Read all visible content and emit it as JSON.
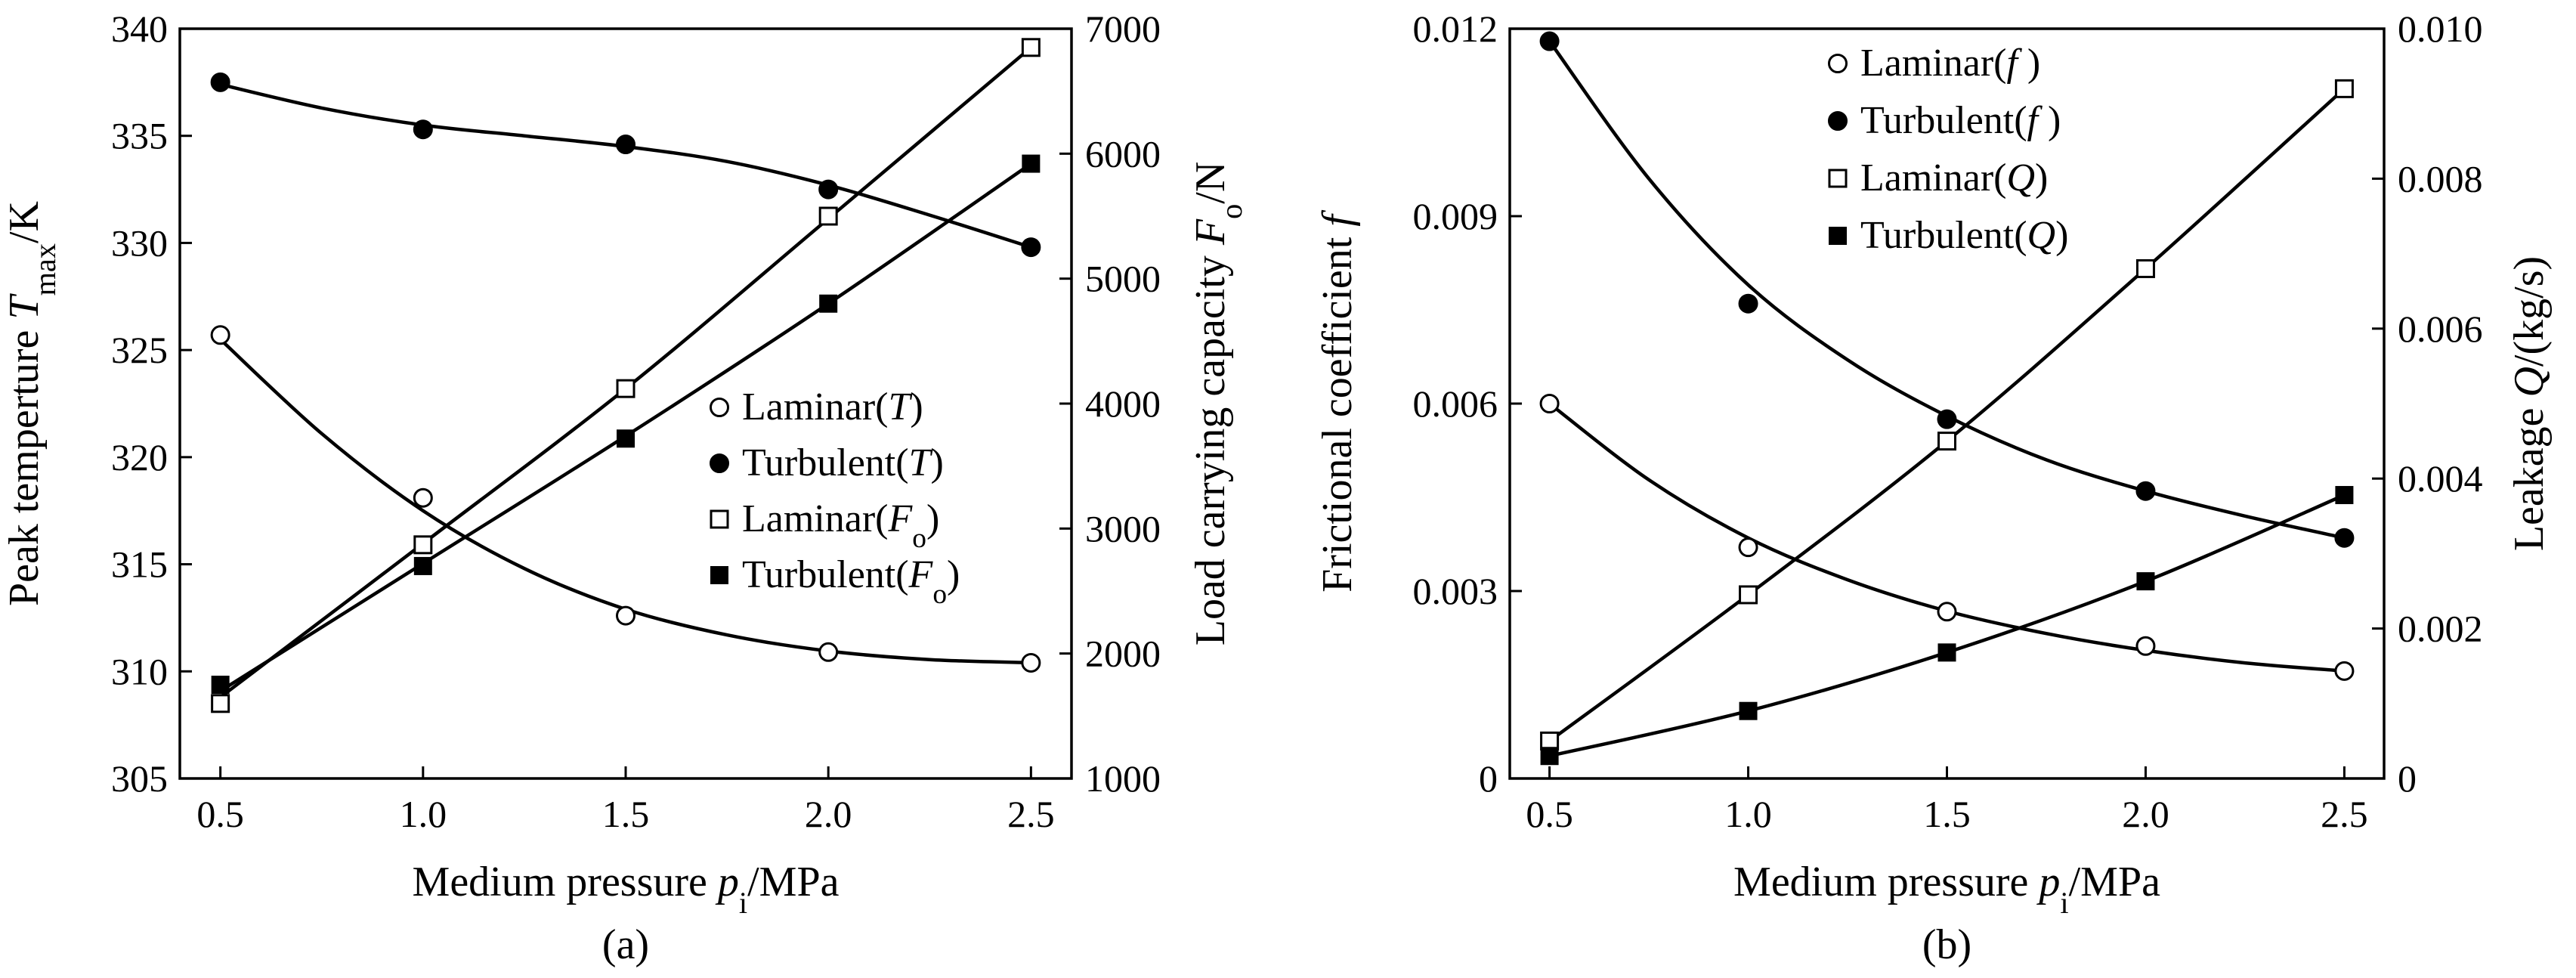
{
  "colors": {
    "ink": "#000000",
    "paper": "#ffffff"
  },
  "chart_data": [
    {
      "type": "line",
      "id": "a",
      "caption": "(a)",
      "xlabel_parts": [
        "Medium pressure ",
        "p",
        "i",
        "/MPa"
      ],
      "ylabel_left_parts": [
        "Peak temperture ",
        "T",
        "max",
        "/K"
      ],
      "ylabel_right_parts": [
        "Load carrying capacity ",
        "F",
        "o",
        "/N"
      ],
      "x_ticks": [
        "0.5",
        "1.0",
        "1.5",
        "2.0",
        "2.5"
      ],
      "x_tick_values": [
        0.5,
        1.0,
        1.5,
        2.0,
        2.5
      ],
      "xlim": [
        0.4,
        2.6
      ],
      "ylim_left": [
        305,
        340
      ],
      "y_ticks_left": [
        "305",
        "310",
        "315",
        "320",
        "325",
        "330",
        "335",
        "340"
      ],
      "y_tick_values_left": [
        305,
        310,
        315,
        320,
        325,
        330,
        335,
        340
      ],
      "ylim_right": [
        1000,
        7000
      ],
      "y_ticks_right": [
        "1000",
        "2000",
        "3000",
        "4000",
        "5000",
        "6000",
        "7000"
      ],
      "y_tick_values_right": [
        1000,
        2000,
        3000,
        4000,
        5000,
        6000,
        7000
      ],
      "legend_position": "center-right",
      "series": [
        {
          "key": "laminar-t",
          "legend_parts": [
            "Laminar(",
            "T",
            "",
            ")"
          ],
          "marker": "circle-open",
          "axis": "left",
          "x": [
            0.5,
            1.0,
            1.5,
            2.0,
            2.5
          ],
          "y": [
            325.7,
            318.1,
            312.6,
            310.9,
            310.4
          ],
          "fit": [
            [
              0.5,
              325.5
            ],
            [
              0.75,
              321.1
            ],
            [
              1.0,
              317.5
            ],
            [
              1.25,
              314.8
            ],
            [
              1.5,
              312.9
            ],
            [
              1.75,
              311.7
            ],
            [
              2.0,
              310.95
            ],
            [
              2.25,
              310.55
            ],
            [
              2.5,
              310.4
            ]
          ]
        },
        {
          "key": "turbulent-t",
          "legend_parts": [
            "Turbulent(",
            "T",
            "",
            ")"
          ],
          "marker": "circle-filled",
          "axis": "left",
          "x": [
            0.5,
            1.0,
            1.5,
            2.0,
            2.5
          ],
          "y": [
            337.5,
            335.3,
            334.6,
            332.5,
            329.8
          ],
          "fit": [
            [
              0.5,
              337.4
            ],
            [
              0.75,
              336.3
            ],
            [
              1.0,
              335.5
            ],
            [
              1.25,
              335.0
            ],
            [
              1.5,
              334.5
            ],
            [
              1.75,
              333.8
            ],
            [
              2.0,
              332.7
            ],
            [
              2.25,
              331.3
            ],
            [
              2.5,
              329.8
            ]
          ]
        },
        {
          "key": "laminar-f",
          "legend_parts": [
            "Laminar(",
            "F",
            "o",
            ")"
          ],
          "marker": "square-open",
          "axis": "right",
          "x": [
            0.5,
            1.0,
            1.5,
            2.0,
            2.5
          ],
          "y": [
            1600,
            2870,
            4120,
            5500,
            6850
          ],
          "fit": [
            [
              0.5,
              1650
            ],
            [
              1.0,
              2880
            ],
            [
              1.5,
              4120
            ],
            [
              2.0,
              5480
            ],
            [
              2.5,
              6850
            ]
          ]
        },
        {
          "key": "turbulent-f",
          "legend_parts": [
            "Turbulent(",
            "F",
            "o",
            ")"
          ],
          "marker": "square-filled",
          "axis": "right",
          "x": [
            0.5,
            1.0,
            1.5,
            2.0,
            2.5
          ],
          "y": [
            1750,
            2700,
            3720,
            4800,
            5920
          ],
          "fit": [
            [
              0.5,
              1700
            ],
            [
              1.0,
              2720
            ],
            [
              1.5,
              3740
            ],
            [
              2.0,
              4800
            ],
            [
              2.5,
              5920
            ]
          ]
        }
      ]
    },
    {
      "type": "line",
      "id": "b",
      "caption": "(b)",
      "xlabel_parts": [
        "Medium pressure ",
        "p",
        "i",
        "/MPa"
      ],
      "ylabel_left_parts": [
        "Frictional coefficient ",
        "f",
        "",
        ""
      ],
      "ylabel_right_parts": [
        "Leakage ",
        "Q",
        "",
        "/(kg/s)"
      ],
      "x_ticks": [
        "0.5",
        "1.0",
        "1.5",
        "2.0",
        "2.5"
      ],
      "x_tick_values": [
        0.5,
        1.0,
        1.5,
        2.0,
        2.5
      ],
      "xlim": [
        0.4,
        2.6
      ],
      "ylim_left": [
        0,
        0.012
      ],
      "y_ticks_left": [
        "0",
        "0.003",
        "0.006",
        "0.009",
        "0.012"
      ],
      "y_tick_values_left": [
        0,
        0.003,
        0.006,
        0.009,
        0.012
      ],
      "ylim_right": [
        0,
        0.01
      ],
      "y_ticks_right": [
        "0",
        "0.002",
        "0.004",
        "0.006",
        "0.008",
        "0.010"
      ],
      "y_tick_values_right": [
        0,
        0.002,
        0.004,
        0.006,
        0.008,
        0.01
      ],
      "legend_position": "top-center",
      "series": [
        {
          "key": "laminar-f",
          "legend_parts": [
            "Laminar(",
            "f",
            "",
            " )"
          ],
          "marker": "circle-open",
          "axis": "left",
          "x": [
            0.5,
            1.0,
            1.5,
            2.0,
            2.5
          ],
          "y": [
            0.006,
            0.0037,
            0.00267,
            0.00212,
            0.00172
          ],
          "fit": [
            [
              0.5,
              0.006
            ],
            [
              0.75,
              0.00478
            ],
            [
              1.0,
              0.00385
            ],
            [
              1.25,
              0.00318
            ],
            [
              1.5,
              0.00268
            ],
            [
              1.75,
              0.00232
            ],
            [
              2.0,
              0.00205
            ],
            [
              2.25,
              0.00185
            ],
            [
              2.5,
              0.00172
            ]
          ]
        },
        {
          "key": "turbulent-f",
          "legend_parts": [
            "Turbulent(",
            "f",
            "",
            " )"
          ],
          "marker": "circle-filled",
          "axis": "left",
          "x": [
            0.5,
            1.0,
            1.5,
            2.0,
            2.5
          ],
          "y": [
            0.0118,
            0.0076,
            0.00575,
            0.0046,
            0.00385
          ],
          "fit": [
            [
              0.5,
              0.0118
            ],
            [
              0.75,
              0.0096
            ],
            [
              1.0,
              0.0079
            ],
            [
              1.25,
              0.0067
            ],
            [
              1.5,
              0.0058
            ],
            [
              1.75,
              0.0051
            ],
            [
              2.0,
              0.0046
            ],
            [
              2.25,
              0.0042
            ],
            [
              2.5,
              0.00385
            ]
          ]
        },
        {
          "key": "laminar-q",
          "legend_parts": [
            "Laminar(",
            "Q",
            "",
            ")"
          ],
          "marker": "square-open",
          "axis": "right",
          "x": [
            0.5,
            1.0,
            1.5,
            2.0,
            2.5
          ],
          "y": [
            0.0005,
            0.00245,
            0.0045,
            0.0068,
            0.0092
          ],
          "fit": [
            [
              0.5,
              0.0005
            ],
            [
              1.0,
              0.00245
            ],
            [
              1.5,
              0.0045
            ],
            [
              2.0,
              0.0068
            ],
            [
              2.5,
              0.0092
            ]
          ]
        },
        {
          "key": "turbulent-q",
          "legend_parts": [
            "Turbulent(",
            "Q",
            "",
            ")"
          ],
          "marker": "square-filled",
          "axis": "right",
          "x": [
            0.5,
            1.0,
            1.5,
            2.0,
            2.5
          ],
          "y": [
            0.0003,
            0.0009,
            0.00168,
            0.00263,
            0.00378
          ],
          "fit": [
            [
              0.5,
              0.0003
            ],
            [
              1.0,
              0.0009
            ],
            [
              1.5,
              0.00168
            ],
            [
              2.0,
              0.00263
            ],
            [
              2.5,
              0.00378
            ]
          ]
        }
      ]
    }
  ]
}
